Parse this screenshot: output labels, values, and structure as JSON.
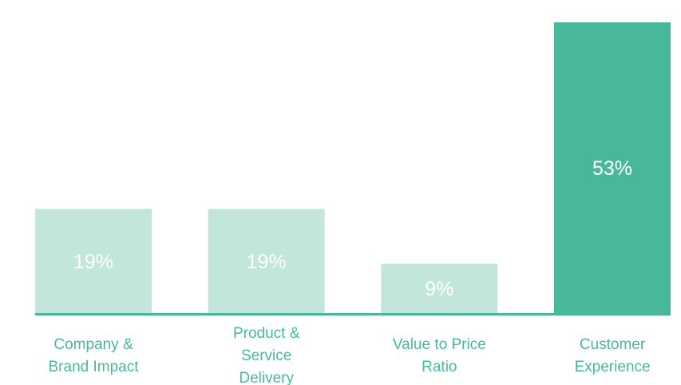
{
  "chart_data": {
    "type": "bar",
    "categories": [
      [
        "Company &",
        "Brand Impact"
      ],
      [
        "Product &",
        "Service",
        "Delivery"
      ],
      [
        "Value to Price",
        "Ratio"
      ],
      [
        "Customer",
        "Experience"
      ]
    ],
    "values": [
      19,
      19,
      9,
      53
    ],
    "value_labels": [
      "19%",
      "19%",
      "9%",
      "53%"
    ],
    "bar_colors": [
      "#c3e6da",
      "#c3e6da",
      "#c3e6da",
      "#47b99a"
    ],
    "baseline_color": "#47b99a",
    "label_color": "#47b99a",
    "value_label_color": "#ffffff",
    "ylim": [
      0,
      53
    ],
    "title": "",
    "xlabel": "",
    "ylabel": ""
  }
}
